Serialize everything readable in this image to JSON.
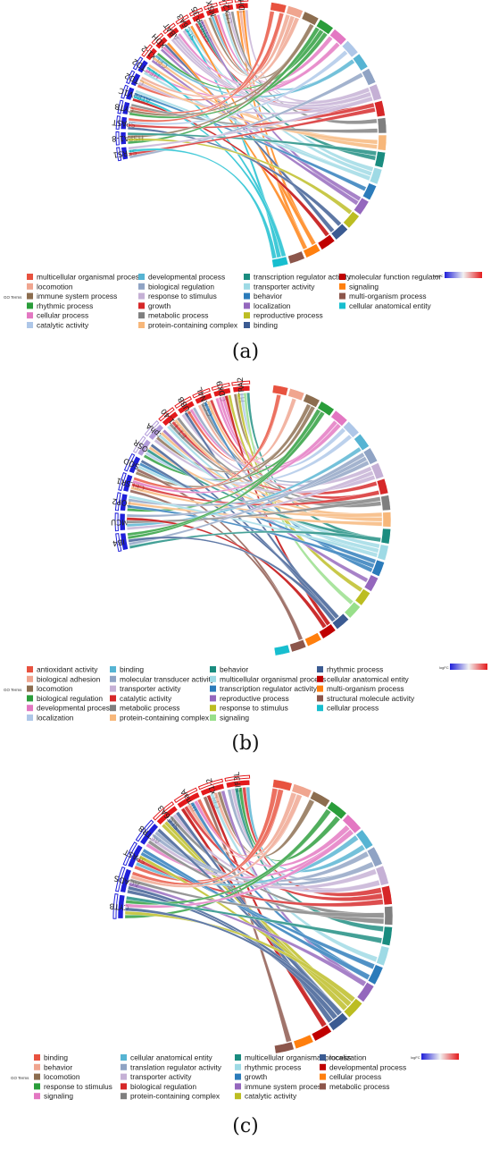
{
  "legend_title": "GO Terms",
  "logfc_title": "logFC",
  "colors": {
    "upregulated": "#e41a1c",
    "downregulated": "#1f1fd9"
  },
  "chart_data": [
    {
      "type": "chord",
      "panel_label": "(a)",
      "genes": [
        {
          "name": "IDH3",
          "regulation": "up"
        },
        {
          "name": "LHX2-9",
          "regulation": "up"
        },
        {
          "name": "MSX",
          "regulation": "up"
        },
        {
          "name": "SNRNP-35",
          "regulation": "up"
        },
        {
          "name": "SLC6A3",
          "regulation": "up"
        },
        {
          "name": "ABAT",
          "regulation": "up"
        },
        {
          "name": "XDH",
          "regulation": "up"
        },
        {
          "name": "CPLX1-2",
          "regulation": "up"
        },
        {
          "name": "HECTD2",
          "regulation": "down"
        },
        {
          "name": "CTD2",
          "regulation": "down"
        },
        {
          "name": "ATPeV1C",
          "regulation": "down"
        },
        {
          "name": "CYTB",
          "regulation": "down"
        },
        {
          "name": "SPAST",
          "regulation": "down"
        },
        {
          "name": "HSPA1-8",
          "regulation": "down"
        },
        {
          "name": "SFRS1",
          "regulation": "down"
        }
      ],
      "terms": [
        {
          "name": "multicellular organismal process",
          "color": "#e8523f"
        },
        {
          "name": "locomotion",
          "color": "#f0a58f"
        },
        {
          "name": "immune system process",
          "color": "#8c6d4f"
        },
        {
          "name": "rhythmic process",
          "color": "#2a9d3a"
        },
        {
          "name": "cellular process",
          "color": "#e377c2"
        },
        {
          "name": "catalytic activity",
          "color": "#aec7e8"
        },
        {
          "name": "developmental process",
          "color": "#56b4d3"
        },
        {
          "name": "biological regulation",
          "color": "#8fa3c4"
        },
        {
          "name": "response to stimulus",
          "color": "#c5b0d5"
        },
        {
          "name": "growth",
          "color": "#d62728"
        },
        {
          "name": "metabolic process",
          "color": "#7f7f7f"
        },
        {
          "name": "protein-containing complex",
          "color": "#f7b77a"
        },
        {
          "name": "transcription regulator activity",
          "color": "#1a8c7f"
        },
        {
          "name": "transporter activity",
          "color": "#9edae5"
        },
        {
          "name": "behavior",
          "color": "#2b7bba"
        },
        {
          "name": "localization",
          "color": "#9467bd"
        },
        {
          "name": "reproductive process",
          "color": "#bcbd22"
        },
        {
          "name": "binding",
          "color": "#3b5b92"
        },
        {
          "name": "molecular function regulator",
          "color": "#c00000"
        },
        {
          "name": "signaling",
          "color": "#ff7f0e"
        },
        {
          "name": "multi-organism process",
          "color": "#8c564b"
        },
        {
          "name": "cellular anatomical entity",
          "color": "#17becf"
        }
      ]
    },
    {
      "type": "chord",
      "panel_label": "(b)",
      "genes": [
        {
          "name": "HTRA2",
          "regulation": "up"
        },
        {
          "name": "CDK9",
          "regulation": "up"
        },
        {
          "name": "CCRN4L",
          "regulation": "up"
        },
        {
          "name": "TUBB",
          "regulation": "up"
        },
        {
          "name": "E1.1.1.40",
          "regulation": "up"
        },
        {
          "name": "tphA",
          "regulation": "neutral"
        },
        {
          "name": "OSR",
          "regulation": "neutral"
        },
        {
          "name": "SQD",
          "regulation": "down"
        },
        {
          "name": "CELSR1",
          "regulation": "down"
        },
        {
          "name": "TOP2",
          "regulation": "down"
        },
        {
          "name": "MCU",
          "regulation": "down"
        },
        {
          "name": "IB4",
          "regulation": "down"
        }
      ],
      "terms": [
        {
          "name": "antioxidant activity",
          "color": "#e8523f"
        },
        {
          "name": "biological adhesion",
          "color": "#f0a58f"
        },
        {
          "name": "locomotion",
          "color": "#8c6d4f"
        },
        {
          "name": "biological regulation",
          "color": "#2a9d3a"
        },
        {
          "name": "developmental process",
          "color": "#e377c2"
        },
        {
          "name": "localization",
          "color": "#aec7e8"
        },
        {
          "name": "binding",
          "color": "#56b4d3"
        },
        {
          "name": "molecular transducer activity",
          "color": "#8fa3c4"
        },
        {
          "name": "transporter activity",
          "color": "#c5b0d5"
        },
        {
          "name": "catalytic activity",
          "color": "#d62728"
        },
        {
          "name": "metabolic process",
          "color": "#7f7f7f"
        },
        {
          "name": "protein-containing complex",
          "color": "#f7b77a"
        },
        {
          "name": "behavior",
          "color": "#1a8c7f"
        },
        {
          "name": "multicellular organismal process",
          "color": "#9edae5"
        },
        {
          "name": "transcription regulator activity",
          "color": "#2b7bba"
        },
        {
          "name": "reproductive process",
          "color": "#9467bd"
        },
        {
          "name": "response to stimulus",
          "color": "#bcbd22"
        },
        {
          "name": "signaling",
          "color": "#98df8a"
        },
        {
          "name": "rhythmic process",
          "color": "#3b5b92"
        },
        {
          "name": "cellular anatomical entity",
          "color": "#c00000"
        },
        {
          "name": "multi-organism process",
          "color": "#ff7f0e"
        },
        {
          "name": "structural molecule activity",
          "color": "#8c564b"
        },
        {
          "name": "cellular process",
          "color": "#17becf"
        }
      ]
    },
    {
      "type": "chord",
      "panel_label": "(c)",
      "genes": [
        {
          "name": "EIF3L",
          "regulation": "up"
        },
        {
          "name": "CPLX1-2",
          "regulation": "up"
        },
        {
          "name": "mmaA",
          "regulation": "up"
        },
        {
          "name": "SLC6A3",
          "regulation": "up"
        },
        {
          "name": "ACTR8",
          "regulation": "down"
        },
        {
          "name": "SPAST",
          "regulation": "down"
        },
        {
          "name": "ACADS",
          "regulation": "down"
        },
        {
          "name": "CYTB",
          "regulation": "down"
        }
      ],
      "terms": [
        {
          "name": "binding",
          "color": "#e8523f"
        },
        {
          "name": "behavior",
          "color": "#f0a58f"
        },
        {
          "name": "locomotion",
          "color": "#8c6d4f"
        },
        {
          "name": "response to stimulus",
          "color": "#2a9d3a"
        },
        {
          "name": "signaling",
          "color": "#e377c2"
        },
        {
          "name": "cellular anatomical entity",
          "color": "#56b4d3"
        },
        {
          "name": "translation regulator activity",
          "color": "#8fa3c4"
        },
        {
          "name": "transporter activity",
          "color": "#c5b0d5"
        },
        {
          "name": "biological regulation",
          "color": "#d62728"
        },
        {
          "name": "protein-containing complex",
          "color": "#7f7f7f"
        },
        {
          "name": "multicellular organismal process",
          "color": "#1a8c7f"
        },
        {
          "name": "rhythmic process",
          "color": "#9edae5"
        },
        {
          "name": "growth",
          "color": "#2b7bba"
        },
        {
          "name": "immune system process",
          "color": "#9467bd"
        },
        {
          "name": "catalytic activity",
          "color": "#bcbd22"
        },
        {
          "name": "localization",
          "color": "#3b5b92"
        },
        {
          "name": "developmental process",
          "color": "#c00000"
        },
        {
          "name": "cellular process",
          "color": "#ff7f0e"
        },
        {
          "name": "metabolic process",
          "color": "#8c564b"
        }
      ]
    }
  ]
}
